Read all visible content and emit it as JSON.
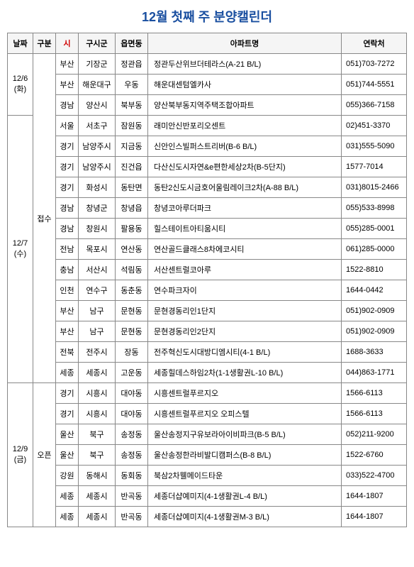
{
  "title": "12월 첫째 주 분양캘린더",
  "title_color": "#1a4fa0",
  "headers": {
    "date": "날짜",
    "gubun": "구분",
    "si": "시",
    "gusigun": "구시군",
    "eup": "읍면동",
    "apt": "아파트명",
    "tel": "연락처"
  },
  "header_bg": "#f5f5f5",
  "border_color": "#888888",
  "si_header_color": "#d00000",
  "dates": [
    {
      "label_line1": "12/6",
      "label_line2": "(화)",
      "gubun_rowspan_with_next": true,
      "rows": [
        {
          "si": "부산",
          "gusigun": "기장군",
          "eup": "정관읍",
          "apt": "정관두산위브더테라스(A-21 B/L)",
          "tel": "051)703-7272"
        },
        {
          "si": "부산",
          "gusigun": "해운대구",
          "eup": "우동",
          "apt": "해운대센텀엘카사",
          "tel": "051)744-5551"
        },
        {
          "si": "경남",
          "gusigun": "양산시",
          "eup": "북부동",
          "apt": "양산북부동지역주택조합아파트",
          "tel": "055)366-7158"
        }
      ]
    },
    {
      "label_line1": "12/7",
      "label_line2": "(수)",
      "rows": [
        {
          "si": "서울",
          "gusigun": "서초구",
          "eup": "잠원동",
          "apt": "래미안신반포리오센트",
          "tel": "02)451-3370"
        },
        {
          "si": "경기",
          "gusigun": "남양주시",
          "eup": "지금동",
          "apt": "신안인스빌퍼스트리버(B-6 B/L)",
          "tel": "031)555-5090"
        },
        {
          "si": "경기",
          "gusigun": "남양주시",
          "eup": "진건읍",
          "apt": "다산신도시자연&e편한세상2차(B-5단지)",
          "tel": "1577-7014"
        },
        {
          "si": "경기",
          "gusigun": "화성시",
          "eup": "동탄면",
          "apt": "동탄2신도시금호어울림레이크2차(A-88 B/L)",
          "tel": "031)8015-2466"
        },
        {
          "si": "경남",
          "gusigun": "창녕군",
          "eup": "창녕읍",
          "apt": "창녕코아루더파크",
          "tel": "055)533-8998"
        },
        {
          "si": "경남",
          "gusigun": "창원시",
          "eup": "팔용동",
          "apt": "힐스테이트아티움시티",
          "tel": "055)285-0001"
        },
        {
          "si": "전남",
          "gusigun": "목포시",
          "eup": "연산동",
          "apt": "연산골드클래스8차에코시티",
          "tel": "061)285-0000"
        },
        {
          "si": "충남",
          "gusigun": "서산시",
          "eup": "석림동",
          "apt": "서산센트럴코아루",
          "tel": "1522-8810"
        },
        {
          "si": "인천",
          "gusigun": "연수구",
          "eup": "동춘동",
          "apt": "연수파크자이",
          "tel": "1644-0442"
        },
        {
          "si": "부산",
          "gusigun": "남구",
          "eup": "문현동",
          "apt": "문현경동리인1단지",
          "tel": "051)902-0909"
        },
        {
          "si": "부산",
          "gusigun": "남구",
          "eup": "문현동",
          "apt": "문현경동리인2단지",
          "tel": "051)902-0909"
        },
        {
          "si": "전북",
          "gusigun": "전주시",
          "eup": "장동",
          "apt": "전주혁신도시대방디엠시티(4-1 B/L)",
          "tel": "1688-3633"
        },
        {
          "si": "세종",
          "gusigun": "세종시",
          "eup": "고운동",
          "apt": "세종힐데스하임2차(1-1생활권L-10 B/L)",
          "tel": "044)863-1771"
        }
      ]
    },
    {
      "label_line1": "12/9",
      "label_line2": "(금)",
      "gubun": "오픈",
      "rows": [
        {
          "si": "경기",
          "gusigun": "시흥시",
          "eup": "대야동",
          "apt": "시흥센트럴푸르지오",
          "tel": "1566-6113"
        },
        {
          "si": "경기",
          "gusigun": "시흥시",
          "eup": "대야동",
          "apt": "시흥센트럴푸르지오 오피스텔",
          "tel": "1566-6113"
        },
        {
          "si": "울산",
          "gusigun": "북구",
          "eup": "송정동",
          "apt": "울산송정지구유보라아이비파크(B-5 B/L)",
          "tel": "052)211-9200"
        },
        {
          "si": "울산",
          "gusigun": "북구",
          "eup": "송정동",
          "apt": "울산송정한라비발디캠퍼스(B-8 B/L)",
          "tel": "1522-6760"
        },
        {
          "si": "강원",
          "gusigun": "동해시",
          "eup": "동회동",
          "apt": "북삼2차웰메이드타운",
          "tel": "033)522-4700"
        },
        {
          "si": "세종",
          "gusigun": "세종시",
          "eup": "반곡동",
          "apt": "세종더샵예미지(4-1생활권L-4 B/L)",
          "tel": "1644-1807"
        },
        {
          "si": "세종",
          "gusigun": "세종시",
          "eup": "반곡동",
          "apt": "세종더샵예미지(4-1생활권M-3 B/L)",
          "tel": "1644-1807"
        }
      ]
    }
  ],
  "gubun_first_two": "접수"
}
